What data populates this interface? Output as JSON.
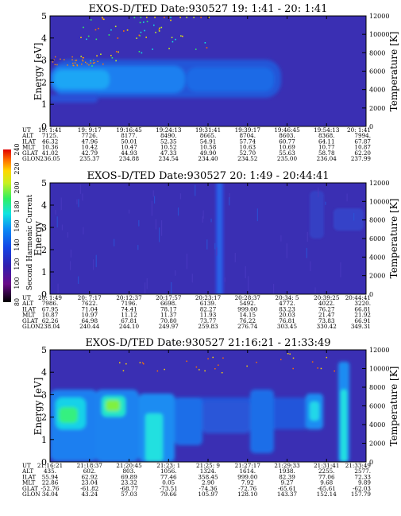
{
  "colorbar": {
    "label": "Second Harmonic Current",
    "ticks": [
      "80",
      "100",
      "120",
      "140",
      "160",
      "180",
      "200",
      "220",
      "240"
    ],
    "colors": [
      "#000000",
      "#6a0a8a",
      "#3020b0",
      "#1446e6",
      "#0a8cf5",
      "#10e4e0",
      "#30f060",
      "#c8f020",
      "#ffd800",
      "#ff7000",
      "#e00000"
    ]
  },
  "panels": [
    {
      "title": "EXOS-D/TED   Date:930527  19: 1:41 - 20: 1:41",
      "ylabel": "Energy [eV]",
      "y2label": "Temperature [K]",
      "yticks": [
        "0",
        "1",
        "2",
        "3",
        "4",
        "5"
      ],
      "y2ticks": [
        "0",
        "2000",
        "4000",
        "6000",
        "8000",
        "10000",
        "12000"
      ],
      "row_labels": [
        "UT",
        "ALT",
        "ILAT",
        "MLT",
        "GLAT",
        "GLON"
      ],
      "columns": [
        [
          "19: 1:41",
          "7125.",
          "46.32",
          "10.36",
          "41.02",
          "236.05"
        ],
        [
          "19: 9:17",
          "7726.",
          "47.96",
          "10.42",
          "42.79",
          "235.37"
        ],
        [
          "19:16:45",
          "8177.",
          "50.01",
          "10.47",
          "44.93",
          "234.88"
        ],
        [
          "19:24:13",
          "8490.",
          "52.35",
          "10.52",
          "47.33",
          "234.54"
        ],
        [
          "19:31:41",
          "8665.",
          "54.91",
          "10.58",
          "49.90",
          "234.40"
        ],
        [
          "19:39:17",
          "8704.",
          "57.74",
          "10.63",
          "52.70",
          "234.52"
        ],
        [
          "19:46:45",
          "8603.",
          "60.77",
          "10.69",
          "55.63",
          "235.00"
        ],
        [
          "19:54:13",
          "8368.",
          "64.11",
          "10.77",
          "58.78",
          "236.04"
        ],
        [
          "20: 1:41",
          "7994.",
          "67.87",
          "10.87",
          "62.20",
          "237.99"
        ]
      ]
    },
    {
      "title": "EXOS-D/TED   Date:930527  20: 1:49 - 20:44:41",
      "ylabel": "Energy",
      "y2label": "Temperature [K]",
      "yticks": [
        "0",
        "1",
        "2",
        "3",
        "4",
        "5"
      ],
      "y2ticks": [
        "0",
        "2000",
        "4000",
        "6000",
        "8000",
        "10000",
        "12000"
      ],
      "row_labels": [
        "UT",
        "ALT",
        "ILAT",
        "MLT",
        "GLAT",
        "GLON"
      ],
      "columns": [
        [
          "20: 1:49",
          "7986.",
          "67.95",
          "10.87",
          "62.26",
          "238.04"
        ],
        [
          "20: 7:17",
          "7622.",
          "71.04",
          "10.97",
          "64.98",
          "240.44"
        ],
        [
          "20:12:37",
          "7196.",
          "74.41",
          "11.12",
          "67.81",
          "244.10"
        ],
        [
          "20:17:57",
          "6698.",
          "78.17",
          "11.37",
          "70.80",
          "249.97"
        ],
        [
          "20:23:17",
          "6139.",
          "82.27",
          "11.93",
          "73.77",
          "259.83"
        ],
        [
          "20:28:37",
          "5492.",
          "999.00",
          "14.15",
          "76.22",
          "276.74"
        ],
        [
          "20:34: 5",
          "4772.",
          "83.23",
          "20.03",
          "76.81",
          "303.45"
        ],
        [
          "20:39:25",
          "4022.",
          "76.27",
          "21.47",
          "73.83",
          "330.42"
        ],
        [
          "20:44:41",
          "3220.",
          "66.81",
          "21.92",
          "66.91",
          "349.31"
        ]
      ]
    },
    {
      "title": "EXOS-D/TED   Date:930527  21:16:21 - 21:33:49",
      "ylabel": "Energy [eV]",
      "y2label": "Temperature [K]",
      "yticks": [
        "0",
        "1",
        "2",
        "3",
        "4",
        "5"
      ],
      "y2ticks": [
        "0",
        "2000",
        "4000",
        "6000",
        "8000",
        "10000",
        "12000"
      ],
      "row_labels": [
        "UT",
        "ALT",
        "ILAT",
        "MLT",
        "GLAT",
        "GLON"
      ],
      "columns": [
        [
          "21:16:21",
          "435.",
          "55.94",
          "22.86",
          "-52.76",
          "34.04"
        ],
        [
          "21:18:37",
          "602.",
          "62.92",
          "23.04",
          "-61.82",
          "43.24"
        ],
        [
          "21:20:45",
          "803.",
          "69.89",
          "23.32",
          "-68.77",
          "57.03"
        ],
        [
          "21:23: 1",
          "1056.",
          "77.46",
          "0.05",
          "-73.51",
          "79.66"
        ],
        [
          "21:25: 9",
          "1324.",
          "358.45",
          "2.90",
          "-74.36",
          "105.97"
        ],
        [
          "21:27:17",
          "1614.",
          "999.00",
          "7.92",
          "-72.76",
          "128.10"
        ],
        [
          "21:29:33",
          "1938.",
          "82.39",
          "9.27",
          "-65.61",
          "143.37"
        ],
        [
          "21:31:41",
          "2255.",
          "77.06",
          "9.68",
          "-65.61",
          "152.14"
        ],
        [
          "21:33:49",
          "2577.",
          "72.33",
          "9.89",
          "-62.03",
          "157.79"
        ]
      ]
    }
  ]
}
